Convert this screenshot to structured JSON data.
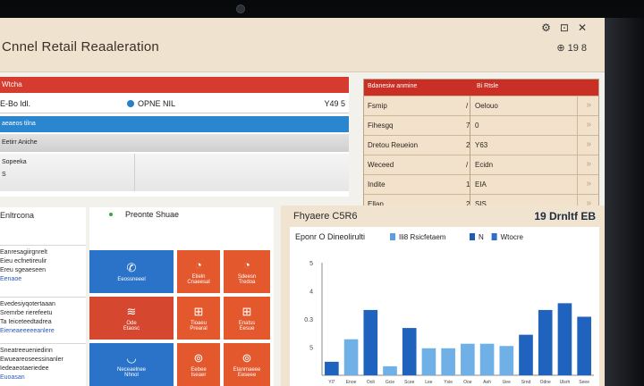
{
  "window": {
    "title": "Cnnel Retail Reaaleration",
    "controls": [
      "⚙",
      "⊡",
      "✕"
    ],
    "status_text": "⊕ 19 8"
  },
  "left_panel": {
    "header": "Wtcha",
    "row1": {
      "c1": "E-Bo ldl.",
      "c2": "OPNE NIL",
      "c3": "Y49 5"
    },
    "blue_bar": "aeaeos tilna",
    "gray_bar": "Eetirr Aniche",
    "gray_a": "Sopeeka",
    "gray_b": "S"
  },
  "right_table": {
    "header_left": "Bdanesiw anmine",
    "header_right": "Bi Rtsle",
    "rows": [
      {
        "label": "Fsmip",
        "value": "/",
        "right": "Oelouo"
      },
      {
        "label": "Fihesgq",
        "value": "7",
        "right": "0"
      },
      {
        "label": "Dretou Reueion",
        "value": "2",
        "right": "Y63"
      },
      {
        "label": "Weceed",
        "value": "/",
        "right": "Ecidn"
      },
      {
        "label": "Indite",
        "value": "1",
        "right": "EIA"
      },
      {
        "label": "Ellap",
        "value": "2",
        "right": "SIS"
      }
    ]
  },
  "list_panel": {
    "title": "Enltrcona",
    "blocks": [
      {
        "lines": [
          "Eanresagiirgnrelt",
          "Eieu ecfnetireulir",
          "Ereu sgeaeseen",
          "Eenaoe"
        ]
      },
      {
        "lines": [
          "Evedesiyqotertaaan",
          "Sremrbe rierefeetu",
          "Ta Ieiceteedtadrea",
          "Eieneaeeeeeanlere"
        ]
      },
      {
        "lines": [
          "Sneatreeueniedinn",
          "Ewueareoseessinanler",
          "Iedeaeotaeriedee",
          "Euoasan"
        ]
      }
    ]
  },
  "tiles": {
    "title": "Preonte Shuae",
    "items": [
      {
        "label": "Eeossneeel",
        "icon": "✆",
        "color": "blue"
      },
      {
        "label": "Etieln\nCnaeesal",
        "icon": "◔",
        "color": "orange"
      },
      {
        "label": "Sdeesn\nTredoa",
        "icon": "◔",
        "color": "orange"
      },
      {
        "label": "Ode\nEtaosc",
        "icon": "≋",
        "color": "red"
      },
      {
        "label": "Tioaeu\nPrearal",
        "icon": "⊞",
        "color": "orange"
      },
      {
        "label": "Enatss\nEesue",
        "icon": "⊞",
        "color": "orange"
      },
      {
        "label": "Neceaelnee\nNhnol",
        "icon": "◡",
        "color": "blue"
      },
      {
        "label": "Eebee\nIseaer",
        "icon": "⊚",
        "color": "orange"
      },
      {
        "label": "Etanmaeee\nEeseee",
        "icon": "⊚",
        "color": "orange"
      }
    ]
  },
  "chart_panel": {
    "title": "Fhyaere C5R6",
    "right_label": "19 Drnltf EB"
  },
  "chart_data": {
    "type": "bar",
    "title": "Eponr O Dineolirulti",
    "legend": [
      {
        "name": "Ili8 Rsicfetaem",
        "color": "#5b9fe0"
      },
      {
        "name": "N",
        "color": "#1a5fb4"
      },
      {
        "name": "Wtocre",
        "color": "#2f6fc8"
      }
    ],
    "y_ticks": [
      "5",
      "4",
      "0.3",
      "5",
      ""
    ],
    "ylim": [
      0,
      5
    ],
    "values": [
      0.6,
      1.6,
      2.9,
      0.4,
      2.1,
      1.2,
      1.2,
      1.4,
      1.4,
      1.3,
      1.8,
      2.9,
      3.2,
      2.6
    ],
    "colors": [
      "#1f63be",
      "#6fb0e6",
      "#1f63be",
      "#6fb0e6",
      "#1f63be",
      "#6fb0e6",
      "#6fb0e6",
      "#6fb0e6",
      "#6fb0e6",
      "#6fb0e6",
      "#1f63be",
      "#1f63be",
      "#1f63be",
      "#1f63be"
    ],
    "categories": [
      "Yl7",
      "Enoe",
      "Ooli",
      "Gcie",
      "Scee",
      "Lee",
      "Yxie",
      "Ooe",
      "Aeh",
      "Uee",
      "Srnd",
      "Odne",
      "Ulsrh",
      "Seee"
    ]
  }
}
